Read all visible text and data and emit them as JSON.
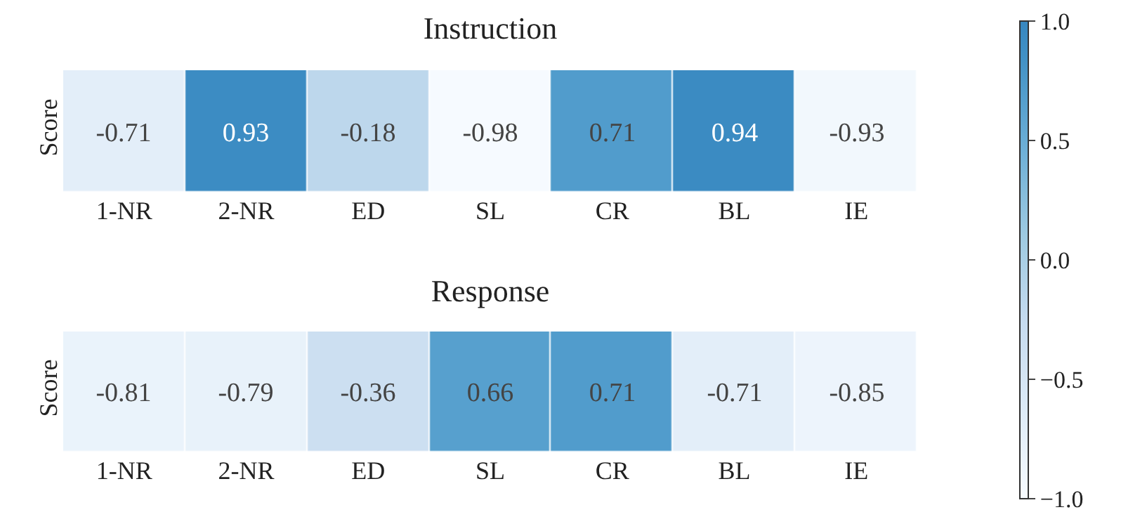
{
  "chart_data": [
    {
      "type": "heatmap",
      "title": "Instruction",
      "categories": [
        "1-NR",
        "2-NR",
        "ED",
        "SL",
        "CR",
        "BL",
        "IE"
      ],
      "y_categories": [
        "Score"
      ],
      "cells": [
        [
          -0.71,
          0.93,
          -0.18,
          -0.98,
          0.71,
          0.94,
          -0.93
        ]
      ],
      "data_labels": true,
      "clim": [
        -1,
        1
      ],
      "cticks": [
        {
          "value": -1,
          "label": "−1.0"
        },
        {
          "value": -0.5,
          "label": "−0.5"
        },
        {
          "value": 0,
          "label": "0.0"
        },
        0.5,
        {
          "value": 1,
          "label": "1.0"
        }
      ]
    },
    {
      "type": "heatmap",
      "title": "Response",
      "categories": [
        "1-NR",
        "2-NR",
        "ED",
        "SL",
        "CR",
        "BL",
        "IE"
      ],
      "y_categories": [
        "Score"
      ],
      "cells": [
        [
          -0.81,
          -0.79,
          -0.36,
          0.66,
          0.71,
          -0.71,
          -0.85
        ]
      ],
      "data_labels": true
    }
  ]
}
